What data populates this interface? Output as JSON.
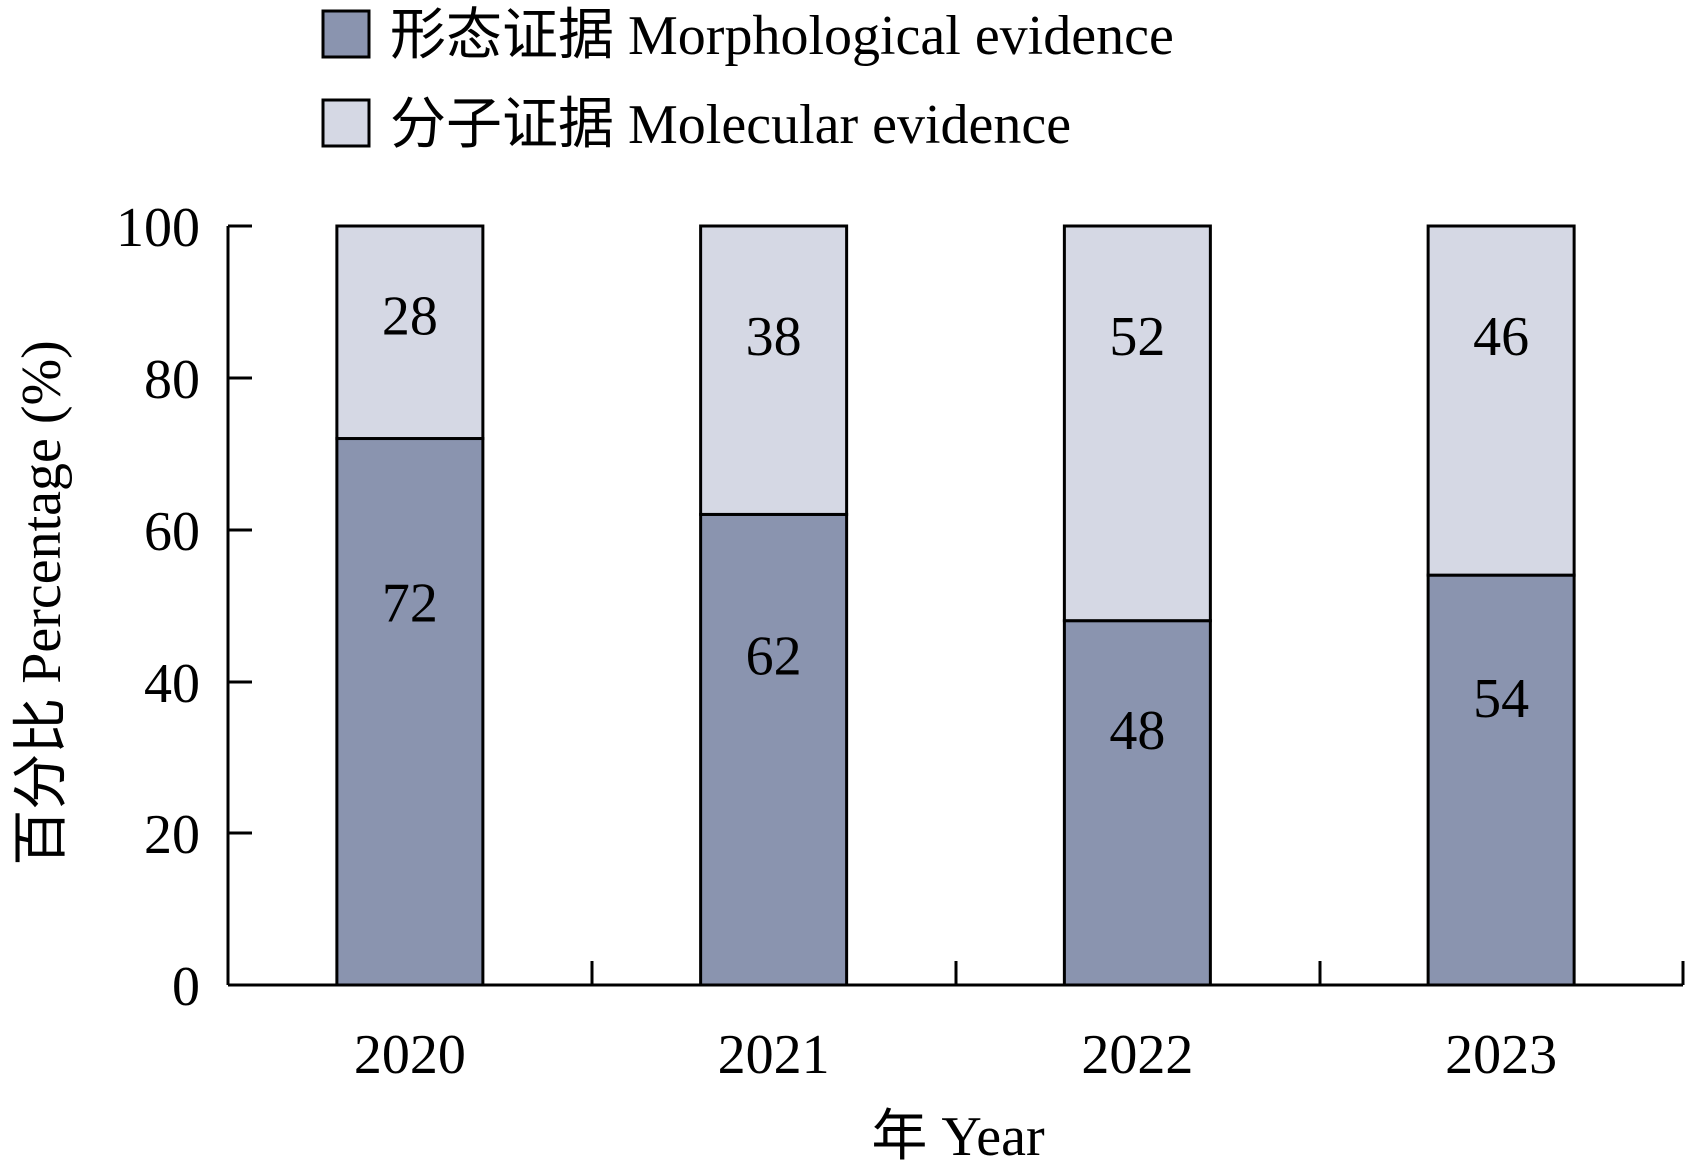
{
  "chart_data": {
    "type": "bar",
    "stacked": true,
    "categories": [
      "2020",
      "2021",
      "2022",
      "2023"
    ],
    "series": [
      {
        "name": "形态证据 Morphological evidence",
        "color": "#8a94af",
        "values": [
          72,
          62,
          48,
          54
        ]
      },
      {
        "name": "分子证据 Molecular evidence",
        "color": "#d5d8e4",
        "values": [
          28,
          38,
          52,
          46
        ]
      }
    ],
    "data_labels": [
      [
        "72",
        "62",
        "48",
        "54"
      ],
      [
        "28",
        "38",
        "52",
        "46"
      ]
    ],
    "xlabel": "年 Year",
    "ylabel": "百分比 Percentage (%)",
    "ylim": [
      0,
      100
    ],
    "yticks": [
      "0",
      "20",
      "40",
      "60",
      "80",
      "100"
    ],
    "grid": false,
    "legend_position": "top-center"
  }
}
